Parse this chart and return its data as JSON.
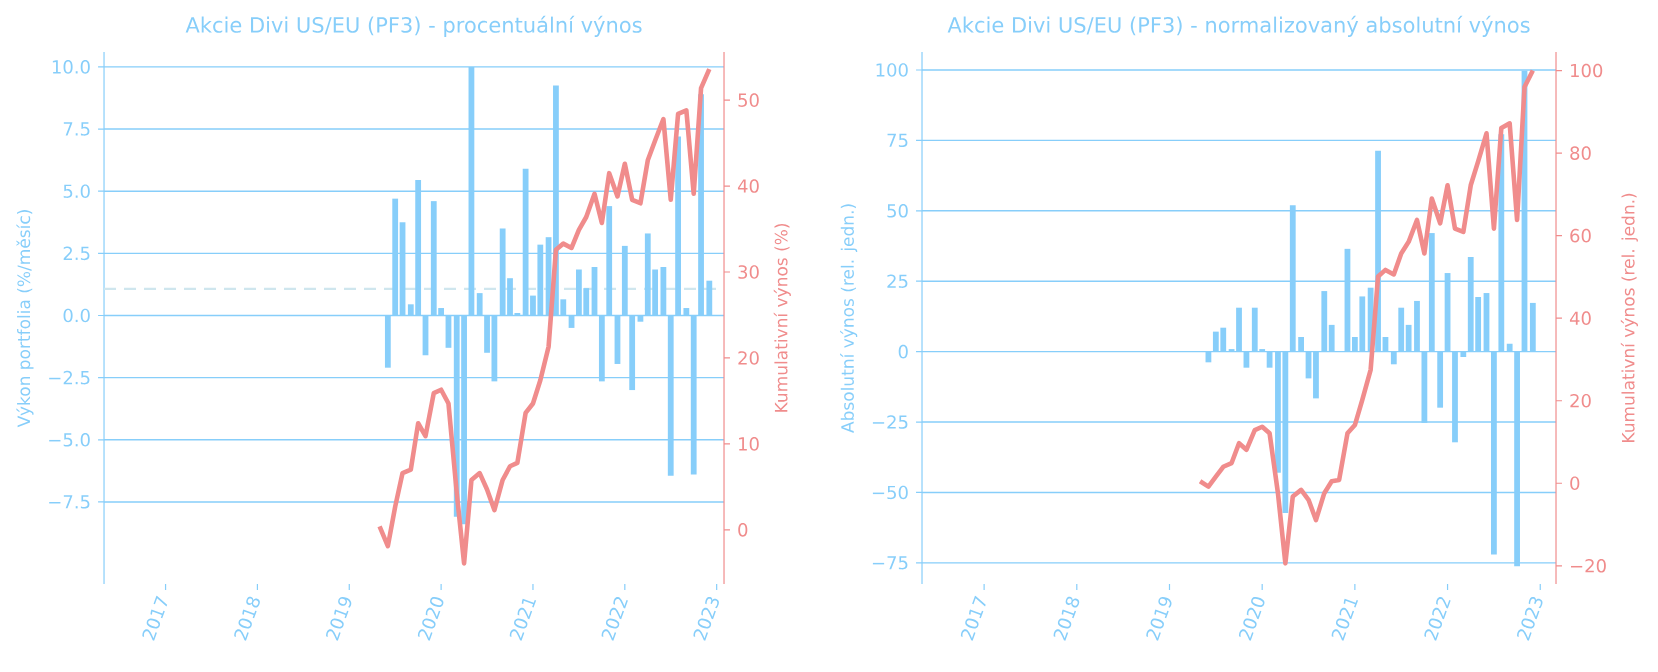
{
  "chart_data": [
    {
      "type": "bar",
      "title": "Akcie Divi US/EU (PF3) - procentuální výnos",
      "ylabel": "Výkon portfolia (%/měsíc)",
      "y2label": "Kumulativní výnos (%)",
      "x": [
        "2019-06",
        "2019-07",
        "2019-08",
        "2019-09",
        "2019-10",
        "2019-11",
        "2019-12",
        "2020-01",
        "2020-02",
        "2020-03",
        "2020-04",
        "2020-05",
        "2020-06",
        "2020-07",
        "2020-08",
        "2020-09",
        "2020-10",
        "2020-11",
        "2020-12",
        "2021-01",
        "2021-02",
        "2021-03",
        "2021-04",
        "2021-05",
        "2021-06",
        "2021-07",
        "2021-08",
        "2021-09",
        "2021-10",
        "2021-11",
        "2021-12",
        "2022-01",
        "2022-02",
        "2022-03",
        "2022-04",
        "2022-05",
        "2022-06",
        "2022-07",
        "2022-08",
        "2022-09",
        "2022-10",
        "2022-11",
        "2022-12"
      ],
      "series": [
        {
          "color": "#87cefa",
          "values": [
            -2.1,
            4.7,
            3.75,
            0.45,
            5.45,
            -1.6,
            4.6,
            0.3,
            -1.3,
            -8.1,
            -8.4,
            10.0,
            0.9,
            -1.5,
            -2.65,
            3.5,
            1.5,
            0.1,
            5.9,
            0.8,
            2.85,
            3.15,
            9.25,
            0.65,
            -0.5,
            1.85,
            1.1,
            1.95,
            -2.65,
            4.4,
            -1.95,
            2.8,
            -3.0,
            -0.25,
            3.3,
            1.85,
            1.95,
            -6.45,
            7.2,
            0.3,
            -6.4,
            8.9,
            1.4
          ]
        },
        {
          "type": "line",
          "axis": "y2",
          "color": "#f08c8c",
          "x": [
            "2019-05",
            "2019-06",
            "2019-07",
            "2019-08",
            "2019-09",
            "2019-10",
            "2019-11",
            "2019-12",
            "2020-01",
            "2020-02",
            "2020-03",
            "2020-04",
            "2020-05",
            "2020-06",
            "2020-07",
            "2020-08",
            "2020-09",
            "2020-10",
            "2020-11",
            "2020-12",
            "2021-01",
            "2021-02",
            "2021-03",
            "2021-04",
            "2021-05",
            "2021-06",
            "2021-07",
            "2021-08",
            "2021-09",
            "2021-10",
            "2021-11",
            "2021-12",
            "2022-01",
            "2022-02",
            "2022-03",
            "2022-04",
            "2022-05",
            "2022-06",
            "2022-07",
            "2022-08",
            "2022-09",
            "2022-10",
            "2022-11",
            "2022-12"
          ],
          "values": [
            0.4,
            -1.9,
            2.7,
            6.6,
            7.0,
            12.4,
            10.9,
            15.9,
            16.3,
            14.7,
            4.3,
            -3.9,
            5.8,
            6.6,
            4.7,
            2.3,
            5.8,
            7.4,
            7.8,
            13.6,
            14.7,
            17.4,
            21.3,
            32.6,
            33.3,
            32.8,
            34.9,
            36.4,
            39.1,
            35.7,
            41.5,
            38.8,
            42.6,
            38.4,
            38.0,
            43.0,
            45.3,
            47.8,
            38.4,
            48.4,
            48.8,
            39.1,
            51.4,
            53.6
          ]
        }
      ],
      "xlim": [
        "2016-05",
        "2023-02"
      ],
      "ylim": [
        -10.8,
        10.6
      ],
      "y2lim": [
        -6.3,
        55.6
      ],
      "xticks": [
        {
          "value": "2017",
          "label": "2017"
        },
        {
          "value": "2018",
          "label": "2018"
        },
        {
          "value": "2019",
          "label": "2019"
        },
        {
          "value": "2020",
          "label": "2020"
        },
        {
          "value": "2021",
          "label": "2021"
        },
        {
          "value": "2022",
          "label": "2022"
        },
        {
          "value": "2023",
          "label": "2023"
        }
      ],
      "yticks": [
        {
          "value": -7.5,
          "label": "−7.5"
        },
        {
          "value": -5,
          "label": "−5.0"
        },
        {
          "value": -2.5,
          "label": "−2.5"
        },
        {
          "value": 0,
          "label": "0.0"
        },
        2.5,
        {
          "value": 5,
          "label": "5.0"
        },
        7.5,
        {
          "value": 10,
          "label": "10.0"
        }
      ],
      "y2ticks": [
        0,
        10,
        20,
        30,
        40,
        50
      ],
      "grid": "y",
      "ref_lines": [
        {
          "axis": "y",
          "value": 1.07,
          "color": "#cfe6ee",
          "line_style": "dashed"
        }
      ]
    },
    {
      "type": "bar",
      "title": "Akcie Divi US/EU (PF3) - normalizovaný absolutní výnos",
      "ylabel": "Absolutní výnos (rel. jedn.)",
      "y2label": "Kumulativní výnos (rel. jedn.)",
      "x": [
        "2019-06",
        "2019-07",
        "2019-08",
        "2019-09",
        "2019-10",
        "2019-11",
        "2019-12",
        "2020-01",
        "2020-02",
        "2020-03",
        "2020-04",
        "2020-05",
        "2020-06",
        "2020-07",
        "2020-08",
        "2020-09",
        "2020-10",
        "2020-11",
        "2020-12",
        "2021-01",
        "2021-02",
        "2021-03",
        "2021-04",
        "2021-05",
        "2021-06",
        "2021-07",
        "2021-08",
        "2021-09",
        "2021-10",
        "2021-11",
        "2021-12",
        "2022-01",
        "2022-02",
        "2022-03",
        "2022-04",
        "2022-05",
        "2022-06",
        "2022-07",
        "2022-08",
        "2022-09",
        "2022-10",
        "2022-11",
        "2022-12"
      ],
      "series": [
        {
          "color": "#87cefa",
          "values": [
            -3.8,
            7.1,
            8.5,
            0.9,
            15.6,
            -5.7,
            15.6,
            0.9,
            -5.7,
            -43,
            -57.3,
            52,
            5.2,
            -9.5,
            -16.6,
            21.5,
            9.5,
            null,
            36.5,
            5.2,
            19.6,
            22.7,
            71.3,
            5.2,
            -4.5,
            15.6,
            9.5,
            18,
            -25.3,
            42.1,
            -19.9,
            27.9,
            -32.2,
            -1.9,
            33.6,
            19.4,
            20.8,
            -72,
            77.2,
            2.8,
            -76.2,
            99.7,
            17.3
          ]
        },
        {
          "type": "line",
          "axis": "y2",
          "color": "#f08c8c",
          "x": [
            "2019-05",
            "2019-06",
            "2019-07",
            "2019-08",
            "2019-09",
            "2019-10",
            "2019-11",
            "2019-12",
            "2020-01",
            "2020-02",
            "2020-03",
            "2020-04",
            "2020-05",
            "2020-06",
            "2020-07",
            "2020-08",
            "2020-09",
            "2020-10",
            "2020-11",
            "2020-12",
            "2021-01",
            "2021-02",
            "2021-03",
            "2021-04",
            "2021-05",
            "2021-06",
            "2021-07",
            "2021-08",
            "2021-09",
            "2021-10",
            "2021-11",
            "2021-12",
            "2022-01",
            "2022-02",
            "2022-03",
            "2022-04",
            "2022-05",
            "2022-06",
            "2022-07",
            "2022-08",
            "2022-09",
            "2022-10",
            "2022-11",
            "2022-12"
          ],
          "values": [
            0.5,
            -0.8,
            1.6,
            4.0,
            4.9,
            9.7,
            8.1,
            12.9,
            13.7,
            12.1,
            -2.4,
            -19.4,
            -3.2,
            -1.6,
            -4.0,
            -8.9,
            -2.4,
            0.5,
            0.8,
            12.1,
            14.1,
            20.2,
            27.5,
            50.1,
            51.7,
            50.6,
            55.7,
            58.5,
            63.8,
            55.7,
            69.0,
            63.0,
            72.2,
            61.7,
            60.9,
            72.2,
            78.0,
            84.8,
            61.7,
            86.1,
            87.2,
            63.8,
            96,
            100
          ]
        }
      ],
      "xlim": [
        "2016-05",
        "2023-03"
      ],
      "ylim": [
        -82.5,
        106.4
      ],
      "y2lim": [
        -24.4,
        104.5
      ],
      "xticks": [
        {
          "value": "2017",
          "label": "2017"
        },
        {
          "value": "2018",
          "label": "2018"
        },
        {
          "value": "2019",
          "label": "2019"
        },
        {
          "value": "2020",
          "label": "2020"
        },
        {
          "value": "2021",
          "label": "2021"
        },
        {
          "value": "2022",
          "label": "2022"
        },
        {
          "value": "2023",
          "label": "2023"
        }
      ],
      "yticks": [
        {
          "value": -75,
          "label": "−75"
        },
        {
          "value": -50,
          "label": "−50"
        },
        {
          "value": -25,
          "label": "−25"
        },
        0,
        25,
        50,
        75,
        100
      ],
      "y2ticks": [
        {
          "value": -20,
          "label": "−20"
        },
        0,
        20,
        40,
        60,
        80,
        100
      ],
      "grid": "y"
    }
  ]
}
